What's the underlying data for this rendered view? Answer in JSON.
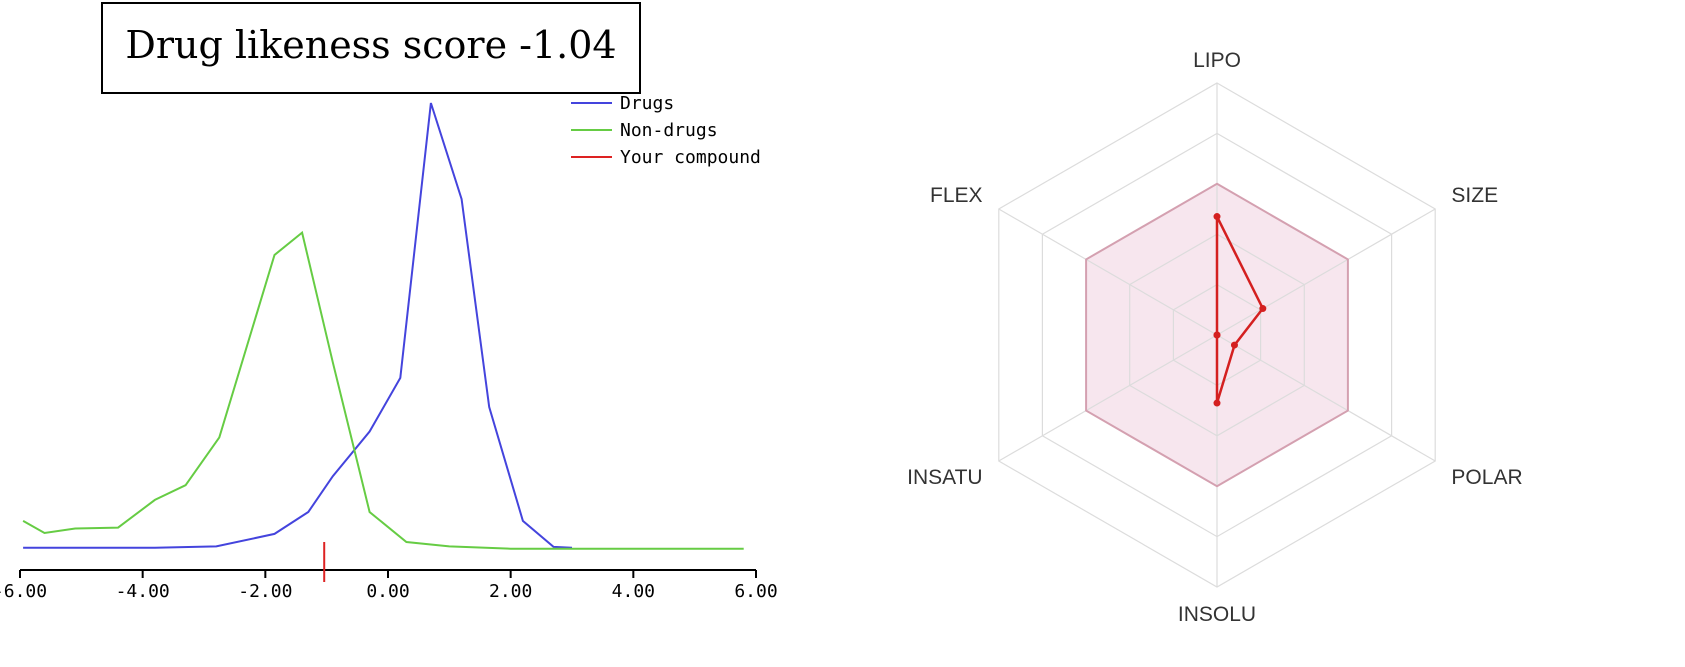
{
  "chart_data": [
    {
      "type": "line",
      "title": "Drug likeness score -1.04",
      "xlim": [
        -6,
        6
      ],
      "xticks": [
        "-6.00",
        "-4.00",
        "-2.00",
        "0.00",
        "2.00",
        "4.00",
        "6.00"
      ],
      "grid": false,
      "legend_position": "top-right",
      "series": [
        {
          "name": "Drugs",
          "color": "#4444dd",
          "points": [
            [
              -5.95,
              0.005
            ],
            [
              -3.8,
              0.005
            ],
            [
              -2.8,
              0.008
            ],
            [
              -1.85,
              0.036
            ],
            [
              -1.3,
              0.085
            ],
            [
              -0.9,
              0.165
            ],
            [
              -0.3,
              0.265
            ],
            [
              0.2,
              0.385
            ],
            [
              0.7,
              1.0
            ],
            [
              1.2,
              0.785
            ],
            [
              1.65,
              0.32
            ],
            [
              2.2,
              0.065
            ],
            [
              2.7,
              0.007
            ],
            [
              3.0,
              0.005
            ]
          ]
        },
        {
          "name": "Non-drugs",
          "color": "#66cc44",
          "points": [
            [
              -5.95,
              0.065
            ],
            [
              -5.6,
              0.038
            ],
            [
              -5.1,
              0.048
            ],
            [
              -4.4,
              0.05
            ],
            [
              -3.8,
              0.112
            ],
            [
              -3.3,
              0.145
            ],
            [
              -2.75,
              0.252
            ],
            [
              -1.85,
              0.66
            ],
            [
              -1.4,
              0.71
            ],
            [
              -0.9,
              0.42
            ],
            [
              -0.3,
              0.085
            ],
            [
              0.3,
              0.018
            ],
            [
              1.0,
              0.008
            ],
            [
              2.0,
              0.003
            ],
            [
              5.8,
              0.003
            ]
          ]
        }
      ],
      "marker": {
        "name": "Your compound",
        "x": -1.04,
        "color": "#dd2222"
      }
    },
    {
      "type": "radar",
      "axes": [
        "LIPO",
        "SIZE",
        "POLAR",
        "INSOLU",
        "INSATU",
        "FLEX"
      ],
      "rings": 5,
      "optimal_range": [
        0.6,
        0.6,
        0.6,
        0.6,
        0.6,
        0.6
      ],
      "optimal_fill": "#f7e6ee",
      "optimal_stroke": "#d4a0b0",
      "values": [
        0.47,
        0.21,
        0.08,
        0.27,
        0.0,
        0.0
      ],
      "value_color": "#d42020"
    }
  ]
}
